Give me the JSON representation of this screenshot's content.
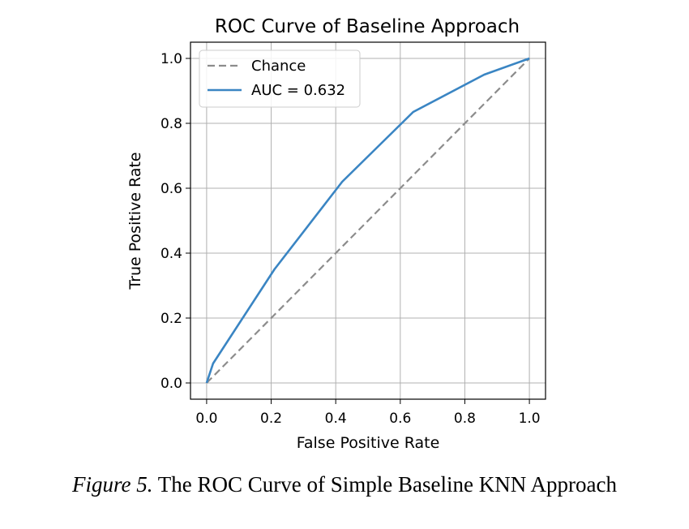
{
  "chart_data": {
    "type": "line",
    "title": "ROC Curve of Baseline Approach",
    "xlabel": "False Positive Rate",
    "ylabel": "True Positive Rate",
    "xlim": [
      -0.05,
      1.05
    ],
    "ylim": [
      -0.05,
      1.05
    ],
    "x_ticks": [
      0.0,
      0.2,
      0.4,
      0.6,
      0.8,
      1.0
    ],
    "y_ticks": [
      0.0,
      0.2,
      0.4,
      0.6,
      0.8,
      1.0
    ],
    "x_tick_labels": [
      "0.0",
      "0.2",
      "0.4",
      "0.6",
      "0.8",
      "1.0"
    ],
    "y_tick_labels": [
      "0.0",
      "0.2",
      "0.4",
      "0.6",
      "0.8",
      "1.0"
    ],
    "grid": true,
    "legend_position": "top-left",
    "series": [
      {
        "name": "Chance",
        "style": "dashed",
        "color": "#8c8c8c",
        "x": [
          0.0,
          1.0
        ],
        "y": [
          0.0,
          1.0
        ]
      },
      {
        "name": "AUC = 0.632",
        "style": "solid",
        "color": "#3a85c3",
        "x": [
          0.0,
          0.02,
          0.21,
          0.42,
          0.64,
          0.86,
          1.0
        ],
        "y": [
          0.0,
          0.06,
          0.35,
          0.62,
          0.835,
          0.95,
          1.0
        ]
      }
    ]
  },
  "caption": {
    "figure_label": "Figure 5.",
    "text": " The ROC Curve of Simple Baseline KNN Approach"
  }
}
